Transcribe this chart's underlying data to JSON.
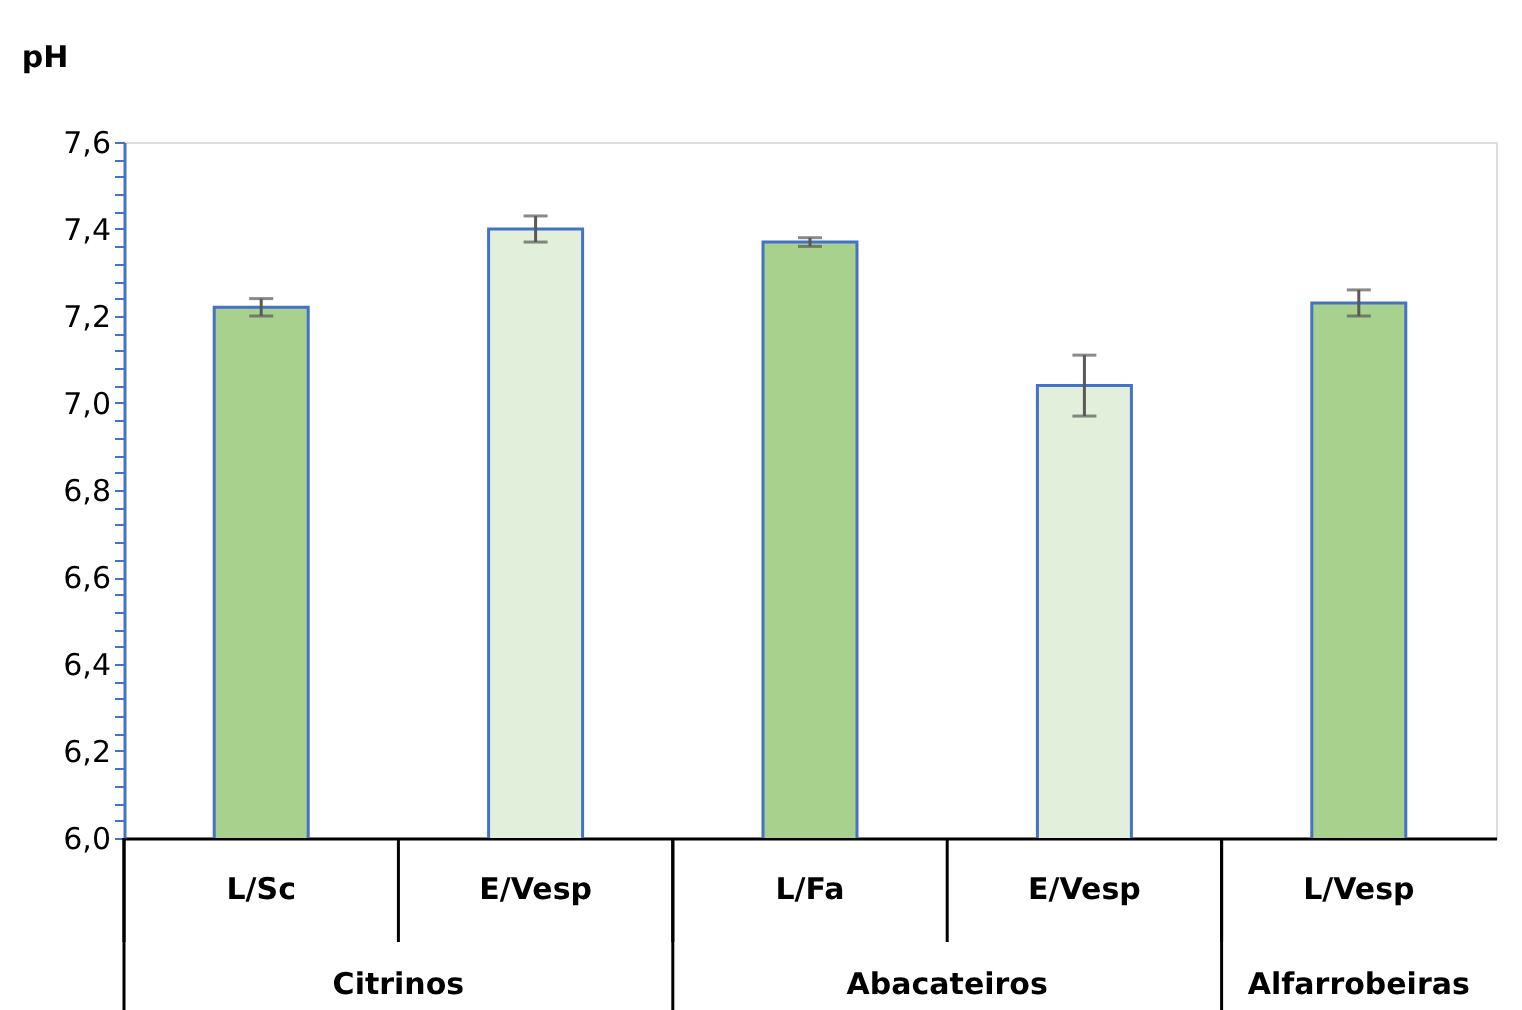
{
  "chart_data": {
    "type": "bar",
    "ylabel": "pH",
    "categories": [
      "L/Sc",
      "E/Vesp",
      "L/Fa",
      "E/Vesp",
      "L/Vesp"
    ],
    "values": [
      7.22,
      7.4,
      7.37,
      7.04,
      7.23
    ],
    "errors": [
      0.02,
      0.03,
      0.01,
      0.07,
      0.03
    ],
    "colors": [
      "#a9d18e",
      "#e2efda",
      "#a9d18e",
      "#e2efda",
      "#a9d18e"
    ],
    "annotations": [
      "Citrinos",
      "Abacateiros",
      "Alfarrobeiras"
    ],
    "ylim": [
      6.0,
      7.6
    ],
    "yticks": [
      {
        "value": 6.0,
        "label": "6,0"
      },
      {
        "value": 6.04,
        "label": null
      },
      {
        "value": 6.08,
        "label": null
      },
      {
        "value": 6.12,
        "label": null
      },
      {
        "value": 6.16,
        "label": null
      },
      {
        "value": 6.2,
        "label": "6,2"
      },
      {
        "value": 6.24,
        "label": null
      },
      {
        "value": 6.28,
        "label": null
      },
      {
        "value": 6.32,
        "label": null
      },
      {
        "value": 6.36,
        "label": null
      },
      {
        "value": 6.4,
        "label": "6,4"
      },
      {
        "value": 6.44,
        "label": null
      },
      {
        "value": 6.48,
        "label": null
      },
      {
        "value": 6.52,
        "label": null
      },
      {
        "value": 6.56,
        "label": null
      },
      {
        "value": 6.6,
        "label": "6,6"
      },
      {
        "value": 6.64,
        "label": null
      },
      {
        "value": 6.68,
        "label": null
      },
      {
        "value": 6.72,
        "label": null
      },
      {
        "value": 6.76,
        "label": null
      },
      {
        "value": 6.8,
        "label": "6,8"
      },
      {
        "value": 6.84,
        "label": null
      },
      {
        "value": 6.88,
        "label": null
      },
      {
        "value": 6.92,
        "label": null
      },
      {
        "value": 6.96,
        "label": null
      },
      {
        "value": 7.0,
        "label": "7,0"
      },
      {
        "value": 7.04,
        "label": null
      },
      {
        "value": 7.08,
        "label": null
      },
      {
        "value": 7.12,
        "label": null
      },
      {
        "value": 7.16,
        "label": null
      },
      {
        "value": 7.2,
        "label": "7,2"
      },
      {
        "value": 7.24,
        "label": null
      },
      {
        "value": 7.28,
        "label": null
      },
      {
        "value": 7.32,
        "label": null
      },
      {
        "value": 7.36,
        "label": null
      },
      {
        "value": 7.4,
        "label": "7,4"
      },
      {
        "value": 7.44,
        "label": null
      },
      {
        "value": 7.48,
        "label": null
      },
      {
        "value": 7.52,
        "label": null
      },
      {
        "value": 7.56,
        "label": null
      },
      {
        "value": 7.6,
        "label": "7,6"
      }
    ],
    "grid": false
  }
}
